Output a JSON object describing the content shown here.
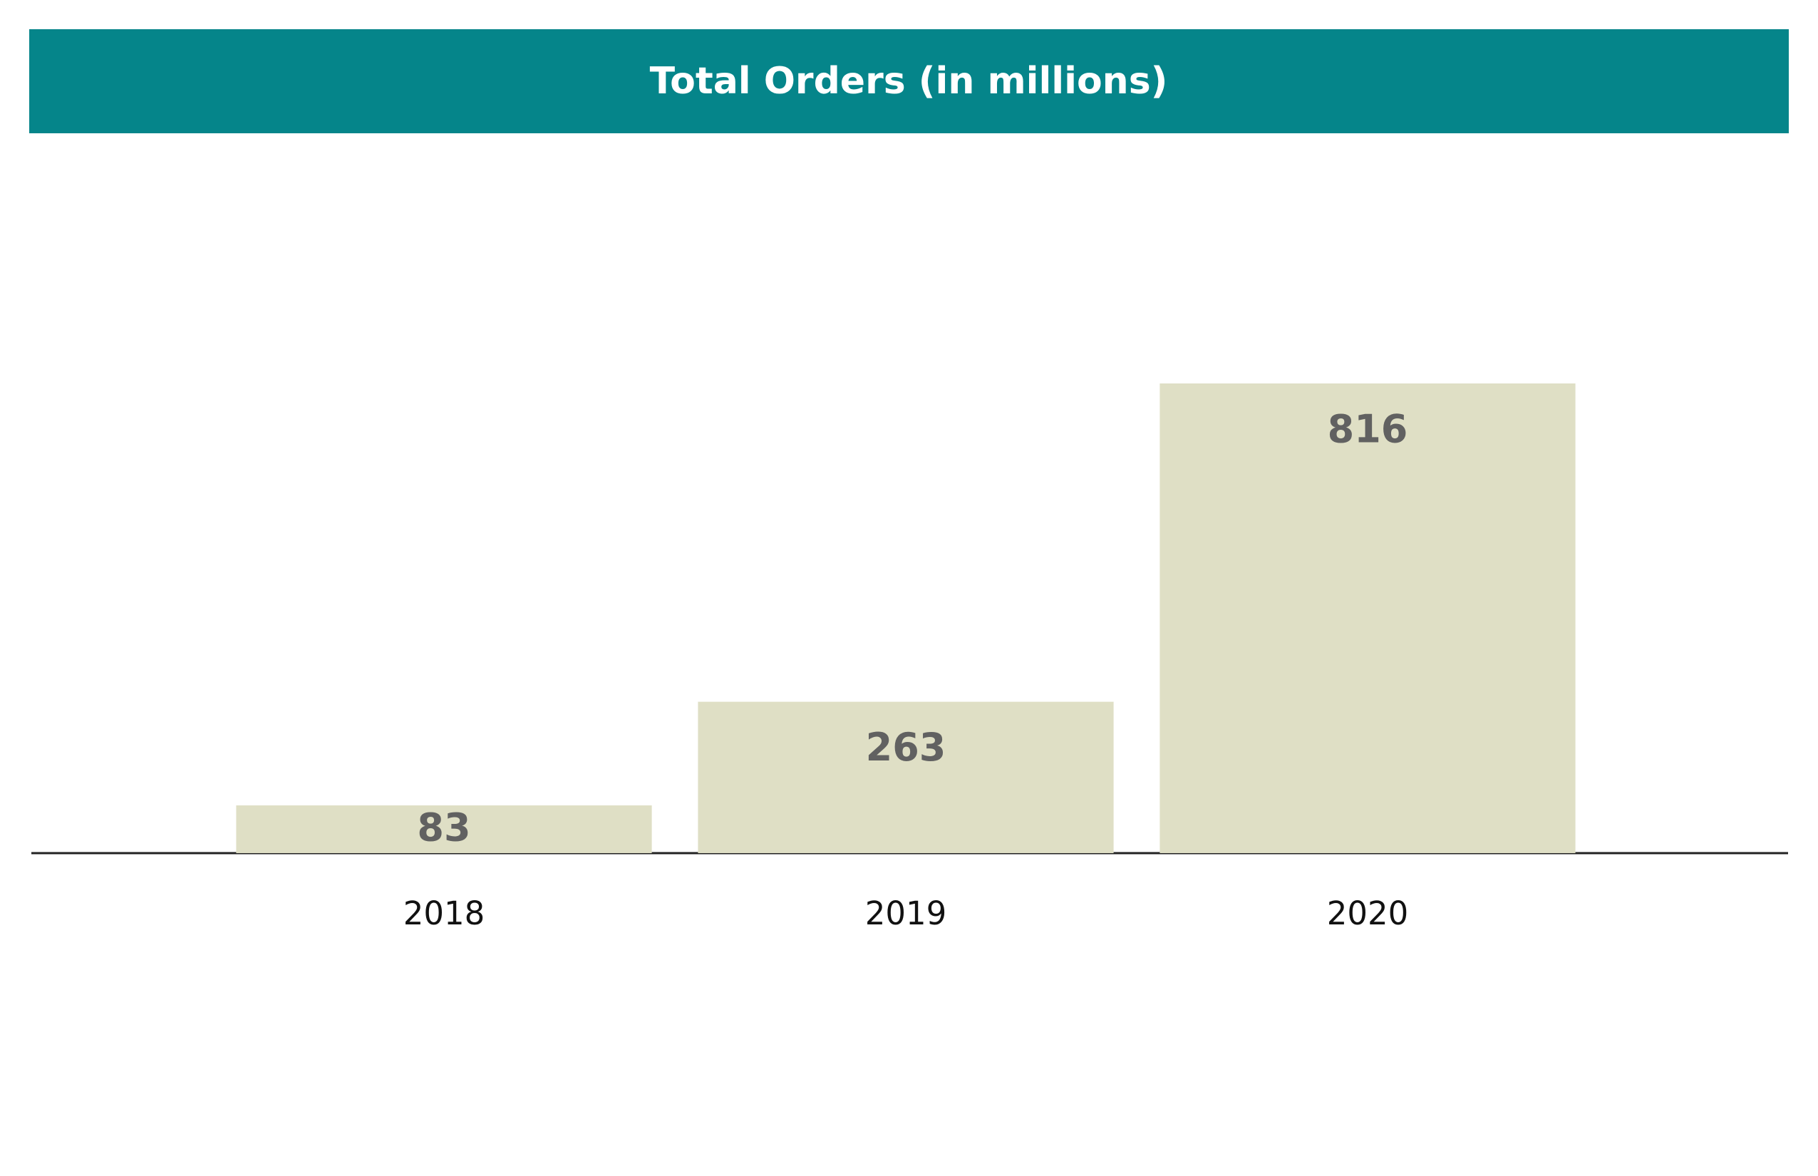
{
  "chart_data": {
    "type": "bar",
    "title": "Total Orders (in millions)",
    "categories": [
      "2018",
      "2019",
      "2020"
    ],
    "values": [
      83,
      263,
      816
    ],
    "color": "#dfdfc5",
    "title_color": "#05858a"
  }
}
